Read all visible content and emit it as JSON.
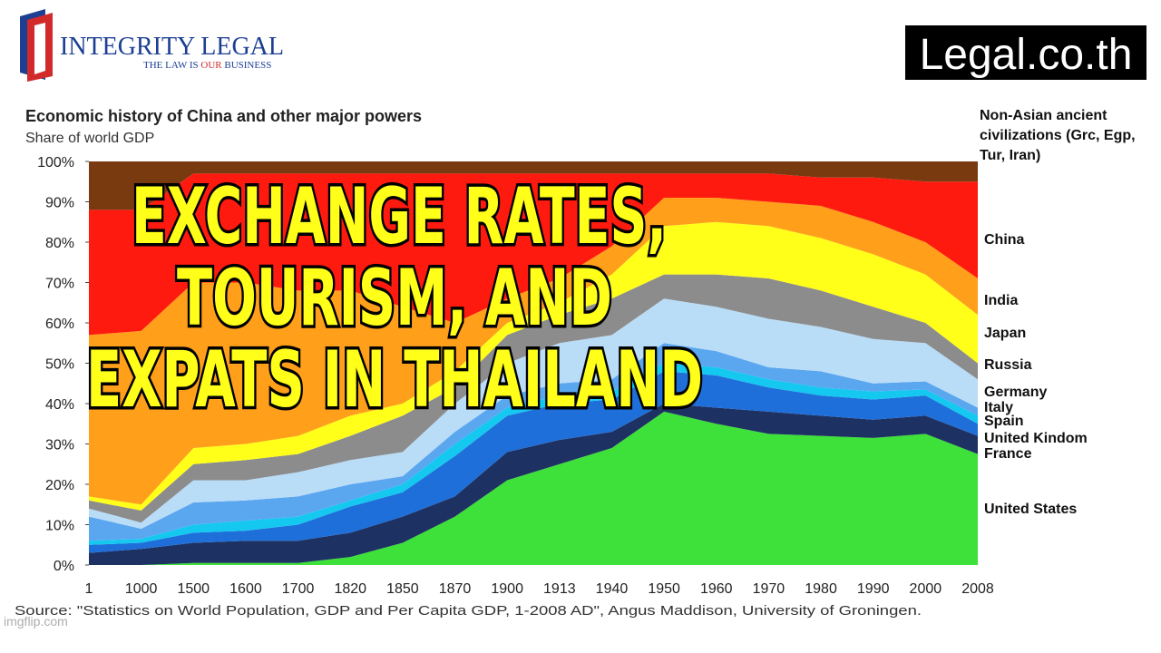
{
  "logo": {
    "name": "INTEGRITY LEGAL",
    "tagline": [
      "THE LAW IS",
      "OUR",
      "BUSINESS"
    ]
  },
  "badge": "Legal.co.th",
  "overlay": [
    "EXCHANGE RATES,",
    "TOURISM, AND",
    "EXPATS IN THAILAND"
  ],
  "source": "Source: \"Statistics on World Population, GDP and Per Capita GDP, 1-2008 AD\", Angus Maddison, University of Groningen.",
  "watermark": "imgflip.com",
  "chart_data": {
    "type": "stacked-area",
    "title": "Economic history of China and other major powers",
    "subtitle": "Share of world GDP",
    "categories": [
      "1",
      "1000",
      "1500",
      "1600",
      "1700",
      "1820",
      "1850",
      "1870",
      "1900",
      "1913",
      "1940",
      "1950",
      "1960",
      "1970",
      "1980",
      "1990",
      "2000",
      "2008"
    ],
    "ylim": [
      0,
      100
    ],
    "yticks": [
      {
        "value": 0,
        "label": "0%"
      },
      {
        "value": 10,
        "label": "10%"
      },
      {
        "value": 20,
        "label": "20%"
      },
      {
        "value": 30,
        "label": "30%"
      },
      {
        "value": 40,
        "label": "40%"
      },
      {
        "value": 50,
        "label": "50%"
      },
      {
        "value": 60,
        "label": "60%"
      },
      {
        "value": 70,
        "label": "70%"
      },
      {
        "value": 80,
        "label": "80%"
      },
      {
        "value": 90,
        "label": "90%"
      },
      {
        "value": 100,
        "label": "100%"
      }
    ],
    "series": [
      {
        "name": "United States",
        "color": "#3ee03a",
        "values": [
          0,
          0,
          0.5,
          0.5,
          0.5,
          2,
          5.5,
          12,
          21,
          25,
          29,
          38,
          35,
          32.5,
          32,
          31.5,
          32.5,
          27.5
        ]
      },
      {
        "name": "France",
        "color": "#1d3163",
        "values": [
          3,
          4,
          5,
          5.5,
          5.5,
          6,
          6.5,
          5,
          7,
          6,
          4,
          2,
          4,
          5.5,
          5,
          4.5,
          4.5,
          4.5
        ]
      },
      {
        "name": "United Kindom",
        "color": "#1e6fd9",
        "values": [
          2,
          1.5,
          2.5,
          2.5,
          4,
          6.5,
          6,
          10,
          9,
          9,
          8,
          8,
          8,
          6,
          5,
          5,
          5,
          3
        ]
      },
      {
        "name": "Spain",
        "color": "#14c8f0",
        "values": [
          1,
          1,
          2,
          2.5,
          2,
          1.5,
          2,
          3,
          2,
          2,
          2,
          2,
          2,
          2,
          2,
          2,
          1.5,
          2
        ]
      },
      {
        "name": "Italy",
        "color": "#5aa7f0",
        "values": [
          6,
          2.5,
          5.5,
          5,
          5,
          4,
          2,
          3,
          3,
          3,
          3,
          5,
          4,
          3,
          4,
          2,
          2,
          2
        ]
      },
      {
        "name": "Germany",
        "color": "#b9dcf7",
        "values": [
          2,
          1.5,
          5.5,
          5,
          6,
          6,
          6,
          7,
          8,
          10,
          11,
          11,
          11,
          12,
          11,
          11,
          9.5,
          7
        ]
      },
      {
        "name": "Russia",
        "color": "#8c8c8c",
        "values": [
          2,
          3,
          4,
          5,
          4.5,
          6,
          9,
          4,
          7,
          7,
          9,
          6,
          8,
          10,
          9,
          8,
          5,
          4
        ]
      },
      {
        "name": "Japan",
        "color": "#ffff1a",
        "values": [
          1,
          1.5,
          4,
          4,
          4.5,
          5,
          3,
          4,
          3,
          3,
          6,
          12,
          13,
          13,
          13,
          13,
          12,
          12
        ]
      },
      {
        "name": "India",
        "color": "#ff9f1a",
        "values": [
          40,
          43,
          41,
          40,
          36,
          31,
          24,
          12,
          6,
          6,
          7,
          7,
          6,
          6,
          8,
          8,
          8,
          9
        ]
      },
      {
        "name": "China",
        "color": "#ff1a0f",
        "values": [
          31,
          30,
          27,
          27,
          29,
          29,
          33,
          37,
          31,
          26,
          18,
          6,
          6,
          7,
          7,
          11,
          15,
          24
        ]
      },
      {
        "name": "Non-Asian ancient civilizations (Grc, Egp, Tur, Iran)",
        "color": "#7a3a10",
        "values": [
          12,
          12,
          3,
          3,
          3,
          3,
          3,
          3,
          3,
          3,
          3,
          3,
          3,
          3,
          4,
          4,
          5,
          5
        ]
      }
    ]
  }
}
